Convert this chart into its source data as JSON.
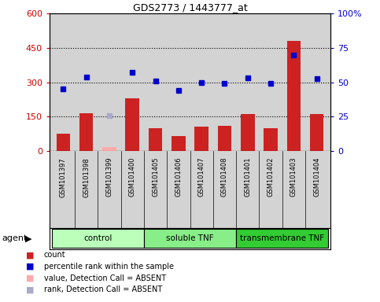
{
  "title": "GDS2773 / 1443777_at",
  "samples": [
    "GSM101397",
    "GSM101398",
    "GSM101399",
    "GSM101400",
    "GSM101405",
    "GSM101406",
    "GSM101407",
    "GSM101408",
    "GSM101401",
    "GSM101402",
    "GSM101403",
    "GSM101404"
  ],
  "counts": [
    75,
    165,
    null,
    230,
    100,
    65,
    105,
    110,
    160,
    100,
    480,
    160
  ],
  "absent_counts": [
    null,
    null,
    18,
    null,
    null,
    null,
    null,
    null,
    null,
    null,
    null,
    null
  ],
  "percentile_ranks_pct": [
    45,
    54,
    null,
    57,
    51,
    44,
    50,
    49.5,
    53,
    49,
    70,
    52.5
  ],
  "absent_ranks_pct": [
    null,
    null,
    26,
    null,
    null,
    null,
    null,
    null,
    null,
    null,
    null,
    null
  ],
  "groups": [
    {
      "label": "control",
      "start": 0,
      "end": 4,
      "color": "#bbffbb"
    },
    {
      "label": "soluble TNF",
      "start": 4,
      "end": 8,
      "color": "#88ee88"
    },
    {
      "label": "transmembrane TNF",
      "start": 8,
      "end": 12,
      "color": "#33cc33"
    }
  ],
  "left_ylim": [
    0,
    600
  ],
  "right_ylim": [
    0,
    100
  ],
  "left_yticks": [
    0,
    150,
    300,
    450,
    600
  ],
  "right_yticks": [
    0,
    25,
    50,
    75,
    100
  ],
  "right_yticklabels": [
    "0",
    "25",
    "50",
    "75",
    "100%"
  ],
  "bar_color": "#cc2222",
  "absent_bar_color": "#ffaaaa",
  "dot_color": "#0000cc",
  "absent_dot_color": "#aaaacc",
  "bg_color": "#d3d3d3",
  "agent_label": "agent",
  "left_ylabel_color": "#cc0000",
  "right_ylabel_color": "#0000cc",
  "legend_items": [
    {
      "color": "#cc2222",
      "label": "count"
    },
    {
      "color": "#0000cc",
      "label": "percentile rank within the sample"
    },
    {
      "color": "#ffaaaa",
      "label": "value, Detection Call = ABSENT"
    },
    {
      "color": "#aaaacc",
      "label": "rank, Detection Call = ABSENT"
    }
  ]
}
